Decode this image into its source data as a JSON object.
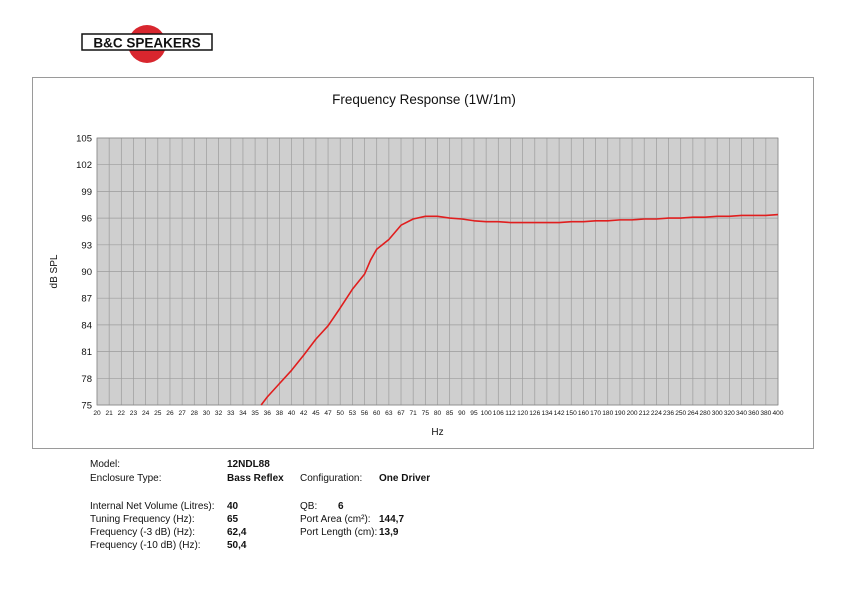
{
  "brand": {
    "logo_text": "B&C SPEAKERS",
    "logo_color": "#d8262e"
  },
  "chart_data": {
    "type": "line",
    "title": "Frequency Response (1W/1m)",
    "xlabel": "Hz",
    "ylabel": "dB SPL",
    "ylim": [
      75,
      105
    ],
    "yticks": [
      "75",
      "78",
      "81",
      "84",
      "87",
      "90",
      "93",
      "96",
      "99",
      "102",
      "105"
    ],
    "x_ticks": [
      "20",
      "21",
      "22",
      "23",
      "24",
      "25",
      "26",
      "27",
      "28",
      "30",
      "32",
      "33",
      "34",
      "35",
      "36",
      "38",
      "40",
      "42",
      "45",
      "47",
      "50",
      "53",
      "56",
      "60",
      "63",
      "67",
      "71",
      "75",
      "80",
      "85",
      "90",
      "95",
      "100",
      "106",
      "112",
      "120",
      "126",
      "134",
      "142",
      "150",
      "160",
      "170",
      "180",
      "190",
      "200",
      "212",
      "224",
      "236",
      "250",
      "264",
      "280",
      "300",
      "320",
      "340",
      "360",
      "380",
      "400"
    ],
    "grid": true,
    "line_color": "#e01e1e",
    "series": [
      {
        "x": [
          35.5,
          36,
          38,
          40,
          42,
          45,
          47,
          50,
          53,
          56,
          58,
          60,
          63,
          65,
          67,
          71,
          75,
          80,
          85,
          90,
          95,
          100,
          106,
          112,
          120,
          126,
          134,
          142,
          150,
          160,
          170,
          180,
          190,
          200,
          212,
          224,
          236,
          250,
          264,
          280,
          300,
          320,
          340,
          360,
          380,
          400
        ],
        "y": [
          75,
          75.9,
          77.4,
          78.9,
          80.6,
          82.4,
          83.9,
          85.9,
          88.0,
          89.7,
          91.3,
          92.5,
          93.6,
          94.4,
          95.2,
          95.9,
          96.2,
          96.2,
          96.0,
          95.9,
          95.7,
          95.6,
          95.6,
          95.5,
          95.5,
          95.5,
          95.5,
          95.5,
          95.6,
          95.6,
          95.7,
          95.7,
          95.8,
          95.8,
          95.9,
          95.9,
          96.0,
          96.0,
          96.1,
          96.1,
          96.2,
          96.2,
          96.3,
          96.3,
          96.3,
          96.4
        ]
      }
    ]
  },
  "specs": {
    "model_label": "Model:",
    "model_value": "12NDL88",
    "enclosure_label": "Enclosure Type:",
    "enclosure_value": "Bass Reflex",
    "config_label": "Configuration:",
    "config_value": "One Driver",
    "volume_label": "Internal Net Volume (Litres):",
    "volume_value": "40",
    "tuning_label": "Tuning Frequency (Hz):",
    "tuning_value": "65",
    "f3_label": "Frequency (-3 dB) (Hz):",
    "f3_value": "62,4",
    "f10_label": "Frequency (-10 dB) (Hz):",
    "f10_value": "50,4",
    "qb_label": "QB:",
    "qb_value": "6",
    "port_area_label": "Port Area (cm²):",
    "port_area_value": "144,7",
    "port_length_label": "Port Length (cm):",
    "port_length_value": "13,9"
  }
}
